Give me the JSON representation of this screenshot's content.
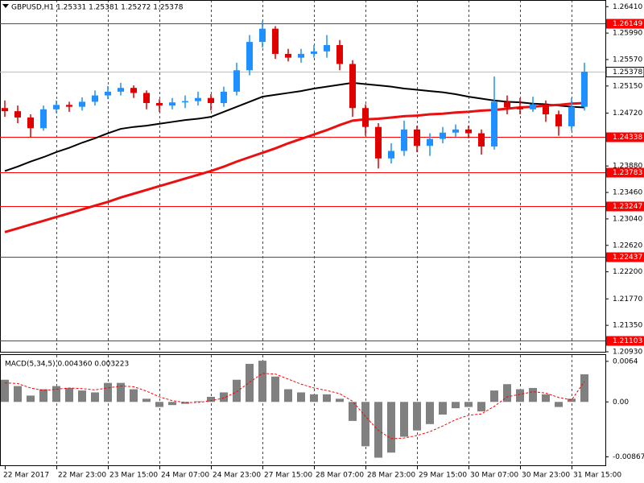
{
  "chart_data": [
    {
      "type": "candlestick",
      "title": "GBPUSD,H1  1.25331 1.25381 1.25272 1.25378",
      "categories": [
        "22 Mar 2017",
        null,
        null,
        null,
        "22 Mar 23:00",
        null,
        null,
        null,
        "23 Mar 15:00",
        null,
        null,
        null,
        "24 Mar 07:00",
        null,
        null,
        null,
        "24 Mar 23:00",
        null,
        null,
        null,
        "27 Mar 15:00",
        null,
        null,
        null,
        "28 Mar 07:00",
        null,
        null,
        null,
        "28 Mar 23:00",
        null,
        null,
        null,
        "29 Mar 15:00",
        null,
        null,
        null,
        "30 Mar 07:00",
        null,
        null,
        null,
        "30 Mar 23:00",
        null,
        null,
        null,
        "31 Mar 15:00",
        null
      ],
      "open": [
        1.248,
        1.2475,
        1.2465,
        1.2448,
        1.2478,
        1.2485,
        1.2482,
        1.249,
        1.25,
        1.2506,
        1.2512,
        1.2504,
        1.2488,
        1.2484,
        1.2489,
        1.2491,
        1.2496,
        1.2488,
        1.2506,
        1.254,
        1.2585,
        1.2606,
        1.2566,
        1.256,
        1.2566,
        1.257,
        1.258,
        1.255,
        1.248,
        1.245,
        1.24,
        1.2412,
        1.2446,
        1.242,
        1.2431,
        1.2441,
        1.2446,
        1.244,
        1.2419,
        1.249,
        1.2481,
        1.2478,
        1.2486,
        1.247,
        1.2451,
        1.2482
      ],
      "high": [
        1.2492,
        1.2484,
        1.247,
        1.2484,
        1.2492,
        1.249,
        1.2497,
        1.2508,
        1.2515,
        1.252,
        1.2516,
        1.2508,
        1.2494,
        1.2496,
        1.25,
        1.2506,
        1.2502,
        1.2514,
        1.2552,
        1.2596,
        1.2618,
        1.261,
        1.2574,
        1.2574,
        1.258,
        1.2596,
        1.2588,
        1.2556,
        1.2486,
        1.2456,
        1.2424,
        1.246,
        1.2452,
        1.244,
        1.245,
        1.2454,
        1.2452,
        1.2446,
        1.253,
        1.25,
        1.2496,
        1.2498,
        1.2492,
        1.2476,
        1.2496,
        1.2552
      ],
      "low": [
        1.2466,
        1.2456,
        1.2433,
        1.2444,
        1.2472,
        1.2474,
        1.2476,
        1.2484,
        1.2494,
        1.25,
        1.2496,
        1.2478,
        1.2474,
        1.2478,
        1.248,
        1.2484,
        1.2476,
        1.2482,
        1.25,
        1.2532,
        1.2576,
        1.2558,
        1.2554,
        1.2552,
        1.256,
        1.256,
        1.254,
        1.2466,
        1.2436,
        1.2384,
        1.2392,
        1.2404,
        1.241,
        1.2404,
        1.2424,
        1.2434,
        1.2432,
        1.2406,
        1.2414,
        1.247,
        1.247,
        1.2474,
        1.2458,
        1.2436,
        1.2444,
        1.2476
      ],
      "close": [
        1.2475,
        1.2465,
        1.2448,
        1.2478,
        1.2485,
        1.2482,
        1.249,
        1.25,
        1.2506,
        1.2512,
        1.2504,
        1.2488,
        1.2484,
        1.2489,
        1.2491,
        1.2496,
        1.2488,
        1.2506,
        1.254,
        1.2585,
        1.2606,
        1.2566,
        1.256,
        1.2566,
        1.257,
        1.258,
        1.255,
        1.248,
        1.245,
        1.24,
        1.2412,
        1.2446,
        1.242,
        1.2431,
        1.2441,
        1.2446,
        1.244,
        1.2419,
        1.249,
        1.2481,
        1.2478,
        1.2486,
        1.247,
        1.2451,
        1.2482,
        1.25378
      ],
      "bull_color": "#1e90ff",
      "bear_color": "#e00000",
      "series": [
        {
          "color": "#000000",
          "values": [
            1.238,
            1.2387,
            1.2395,
            1.2402,
            1.241,
            1.2417,
            1.2425,
            1.2432,
            1.244,
            1.2447,
            1.245,
            1.2452,
            1.2455,
            1.2458,
            1.2461,
            1.2463,
            1.2466,
            1.2474,
            1.2482,
            1.249,
            1.2498,
            1.2501,
            1.2504,
            1.2507,
            1.2511,
            1.2514,
            1.2517,
            1.252,
            1.2518,
            1.2516,
            1.2514,
            1.2511,
            1.2509,
            1.2507,
            1.2505,
            1.2502,
            1.2498,
            1.2495,
            1.2492,
            1.249,
            1.2489,
            1.2487,
            1.2486,
            1.2484,
            1.2482,
            1.2481
          ]
        },
        {
          "color": "#e81010",
          "values": [
            1.2283,
            1.2289,
            1.2295,
            1.2301,
            1.2307,
            1.2313,
            1.2319,
            1.2325,
            1.2331,
            1.2338,
            1.2344,
            1.235,
            1.2356,
            1.2362,
            1.2368,
            1.2374,
            1.238,
            1.2387,
            1.2395,
            1.2402,
            1.2409,
            1.2416,
            1.2424,
            1.2431,
            1.2438,
            1.2445,
            1.2453,
            1.246,
            1.2462,
            1.2463,
            1.2465,
            1.2467,
            1.2468,
            1.247,
            1.2471,
            1.2473,
            1.2474,
            1.2476,
            1.2477,
            1.2479,
            1.2481,
            1.2482,
            1.2484,
            1.2485,
            1.2487,
            1.2488
          ]
        }
      ],
      "levels": [
        1.26149,
        1.24338,
        1.23783,
        1.23247,
        1.22437,
        1.21103
      ],
      "level_color": "#ff0000",
      "last_price": 1.25378,
      "ylim": [
        1.2093,
        1.2649
      ],
      "yticks": [
        {
          "value": 1.2641,
          "label": "1.26410"
        },
        {
          "value": 1.2599,
          "label": "1.25990"
        },
        {
          "value": 1.2557,
          "label": "1.25570"
        },
        {
          "value": 1.2515,
          "label": "1.25150"
        },
        {
          "value": 1.2472,
          "label": "1.24720"
        },
        {
          "value": 1.2388,
          "label": "1.23880"
        },
        {
          "value": 1.2346,
          "label": "1.23460"
        },
        {
          "value": 1.2304,
          "label": "1.23040"
        },
        {
          "value": 1.2262,
          "label": "1.22620"
        },
        {
          "value": 1.222,
          "label": "1.22200"
        },
        {
          "value": 1.2177,
          "label": "1.21770"
        },
        {
          "value": 1.2135,
          "label": "1.21350"
        },
        {
          "value": 1.2093,
          "label": "1.20930"
        }
      ],
      "grid": true
    },
    {
      "type": "macd",
      "title": "MACD(5,34,5) 0.004360 0.003223",
      "histogram": {
        "color": "#808080",
        "values": [
          0.0035,
          0.0025,
          0.001,
          0.002,
          0.0025,
          0.0022,
          0.0018,
          0.0015,
          0.003,
          0.003,
          0.002,
          0.0005,
          -0.0008,
          -0.0005,
          -0.0003,
          0.0001,
          0.0008,
          0.0015,
          0.0035,
          0.006,
          0.0065,
          0.004,
          0.002,
          0.0015,
          0.0012,
          0.0012,
          0.0005,
          -0.003,
          -0.007,
          -0.0088,
          -0.008,
          -0.0055,
          -0.0045,
          -0.0035,
          -0.002,
          -0.001,
          -0.0008,
          -0.0015,
          0.0018,
          0.0028,
          0.002,
          0.0022,
          0.0012,
          -0.0008,
          0.0005,
          0.00436
        ]
      },
      "signal": {
        "color": "#ff0000",
        "values": [
          0.003,
          0.0029,
          0.0022,
          0.0018,
          0.002,
          0.0022,
          0.0021,
          0.0019,
          0.0022,
          0.0025,
          0.0024,
          0.0017,
          0.0008,
          0.0002,
          -0.0001,
          -0.0001,
          0.0002,
          0.0006,
          0.0016,
          0.0031,
          0.0045,
          0.0044,
          0.0036,
          0.0028,
          0.0022,
          0.0018,
          0.0013,
          0.0001,
          -0.0023,
          -0.0045,
          -0.0058,
          -0.0057,
          -0.0053,
          -0.0047,
          -0.0038,
          -0.0028,
          -0.0021,
          -0.0019,
          -0.0007,
          0.0008,
          0.0012,
          0.0016,
          0.0014,
          0.0007,
          0.0003,
          0.003223
        ]
      },
      "ylim": [
        -0.01,
        0.0074
      ],
      "yticks": [
        0.0064,
        {
          "value": 0,
          "label": "0.00"
        },
        -0.008674
      ]
    }
  ]
}
